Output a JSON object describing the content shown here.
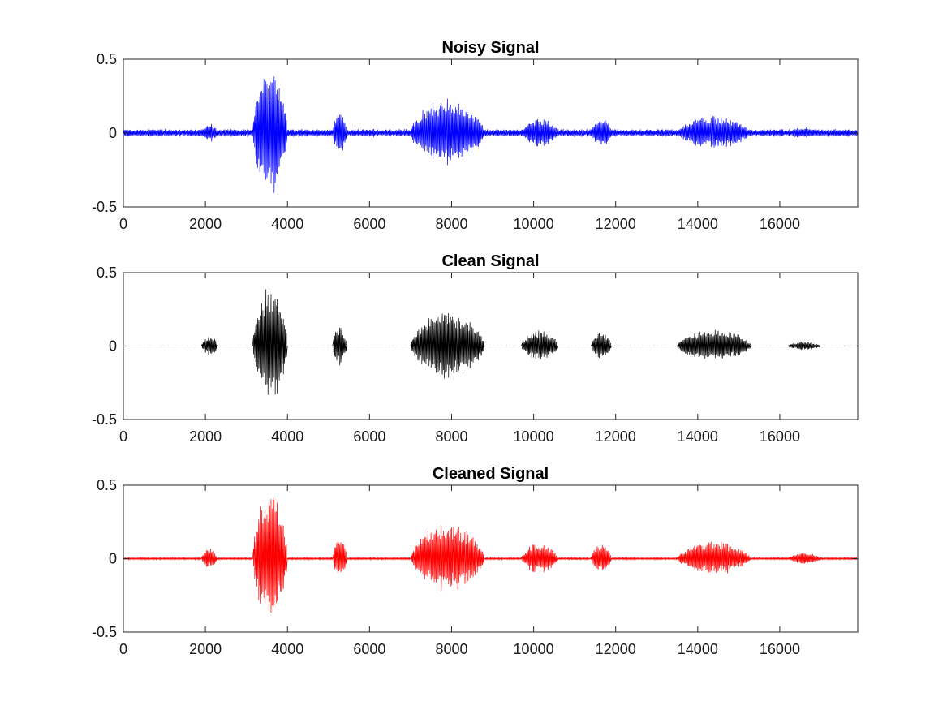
{
  "figure": {
    "background": "#ffffff"
  },
  "chart_data": [
    {
      "type": "line",
      "title": "Noisy Signal",
      "color": "#0000ff",
      "xlabel": "",
      "ylabel": "",
      "xlim": [
        0,
        17900
      ],
      "ylim": [
        -0.5,
        0.5
      ],
      "xticks": [
        0,
        2000,
        4000,
        6000,
        8000,
        10000,
        12000,
        14000,
        16000
      ],
      "yticks": [
        -0.5,
        0,
        0.5
      ],
      "grid": false,
      "noise_floor": 0.028,
      "segments": [
        {
          "start": 1900,
          "end": 2300,
          "amp": 0.07
        },
        {
          "start": 3150,
          "end": 4000,
          "amp": 0.45
        },
        {
          "start": 5100,
          "end": 5450,
          "amp": 0.15
        },
        {
          "start": 7000,
          "end": 8800,
          "amp": 0.25
        },
        {
          "start": 9700,
          "end": 10600,
          "amp": 0.11
        },
        {
          "start": 11400,
          "end": 11900,
          "amp": 0.11
        },
        {
          "start": 13500,
          "end": 15300,
          "amp": 0.12
        },
        {
          "start": 16200,
          "end": 17000,
          "amp": 0.04
        }
      ]
    },
    {
      "type": "line",
      "title": "Clean Signal",
      "color": "#000000",
      "xlabel": "",
      "ylabel": "",
      "xlim": [
        0,
        17900
      ],
      "ylim": [
        -0.5,
        0.5
      ],
      "xticks": [
        0,
        2000,
        4000,
        6000,
        8000,
        10000,
        12000,
        14000,
        16000
      ],
      "yticks": [
        -0.5,
        0,
        0.5
      ],
      "grid": false,
      "noise_floor": 0.0015,
      "segments": [
        {
          "start": 1900,
          "end": 2300,
          "amp": 0.07
        },
        {
          "start": 3150,
          "end": 4000,
          "amp": 0.44
        },
        {
          "start": 5100,
          "end": 5450,
          "amp": 0.14
        },
        {
          "start": 7000,
          "end": 8800,
          "amp": 0.25
        },
        {
          "start": 9700,
          "end": 10600,
          "amp": 0.11
        },
        {
          "start": 11400,
          "end": 11900,
          "amp": 0.1
        },
        {
          "start": 13500,
          "end": 15300,
          "amp": 0.12
        },
        {
          "start": 16200,
          "end": 17000,
          "amp": 0.03
        }
      ]
    },
    {
      "type": "line",
      "title": "Cleaned Signal",
      "color": "#ff0000",
      "xlabel": "",
      "ylabel": "",
      "xlim": [
        0,
        17900
      ],
      "ylim": [
        -0.5,
        0.5
      ],
      "xticks": [
        0,
        2000,
        4000,
        6000,
        8000,
        10000,
        12000,
        14000,
        16000
      ],
      "yticks": [
        -0.5,
        0,
        0.5
      ],
      "grid": false,
      "noise_floor": 0.008,
      "segments": [
        {
          "start": 1900,
          "end": 2300,
          "amp": 0.07
        },
        {
          "start": 3150,
          "end": 4000,
          "amp": 0.48
        },
        {
          "start": 5100,
          "end": 5450,
          "amp": 0.14
        },
        {
          "start": 7000,
          "end": 8800,
          "amp": 0.25
        },
        {
          "start": 9700,
          "end": 10600,
          "amp": 0.11
        },
        {
          "start": 11400,
          "end": 11900,
          "amp": 0.1
        },
        {
          "start": 13500,
          "end": 15300,
          "amp": 0.12
        },
        {
          "start": 16200,
          "end": 17000,
          "amp": 0.04
        }
      ]
    }
  ]
}
